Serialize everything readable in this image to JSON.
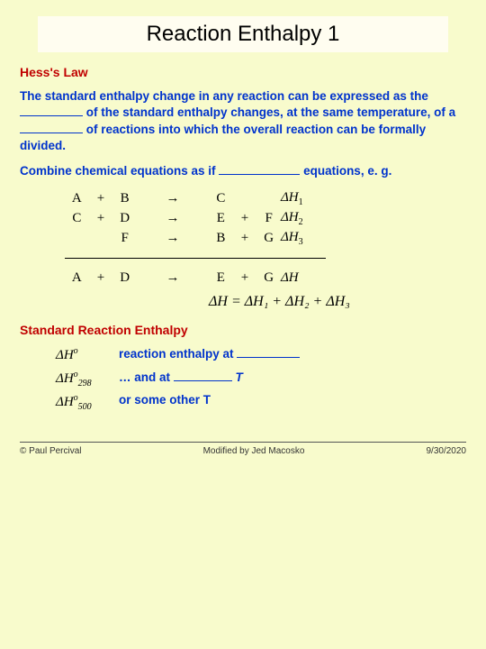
{
  "title": "Reaction Enthalpy 1",
  "subhead1": "Hess's Law",
  "para1a": "The standard enthalpy change in any reaction can be expressed as the ",
  "para1b": " of the standard enthalpy changes, at the same temperature, of a ",
  "para1c": " of reactions into which the overall reaction can be formally divided.",
  "para2a": "Combine chemical equations as if ",
  "para2b": " equations, e. g.",
  "eq": {
    "rows": [
      {
        "l": [
          "A",
          "+",
          "B",
          "",
          "→",
          "",
          "C",
          "",
          "",
          ""
        ],
        "dh": "ΔH",
        "dsub": "1"
      },
      {
        "l": [
          "C",
          "+",
          "D",
          "",
          "→",
          "",
          "E",
          "+",
          "F",
          ""
        ],
        "dh": "ΔH",
        "dsub": "2"
      },
      {
        "l": [
          "",
          "",
          "F",
          "",
          "→",
          "",
          "B",
          "+",
          "G",
          ""
        ],
        "dh": "ΔH",
        "dsub": "3"
      },
      {
        "l": [
          "A",
          "+",
          "D",
          "",
          "→",
          "",
          "E",
          "+",
          "G",
          ""
        ],
        "dh": "ΔH",
        "dsub": ""
      }
    ]
  },
  "dhsum": "ΔH = ΔH₁ + ΔH₂ + ΔH₃",
  "subhead2": "Standard Reaction Enthalpy",
  "std": {
    "left": [
      "ΔH°",
      "ΔH°₂₉₈",
      "ΔH°₅₀₀"
    ],
    "right1a": "reaction enthalpy at ",
    "right2a": "… and at ",
    "right2b": " T",
    "right3": "or some other T"
  },
  "blanks": {
    "b1": 70,
    "b2": 70,
    "b3": 90,
    "b4": 70,
    "b5": 65
  },
  "footer": {
    "left": "© Paul Percival",
    "center": "Modified by Jed Macosko",
    "right": "9/30/2020"
  },
  "colors": {
    "bg": "#f8fbcc",
    "title_bg": "#fffdf0",
    "red": "#c00000",
    "blue": "#0033cc"
  }
}
